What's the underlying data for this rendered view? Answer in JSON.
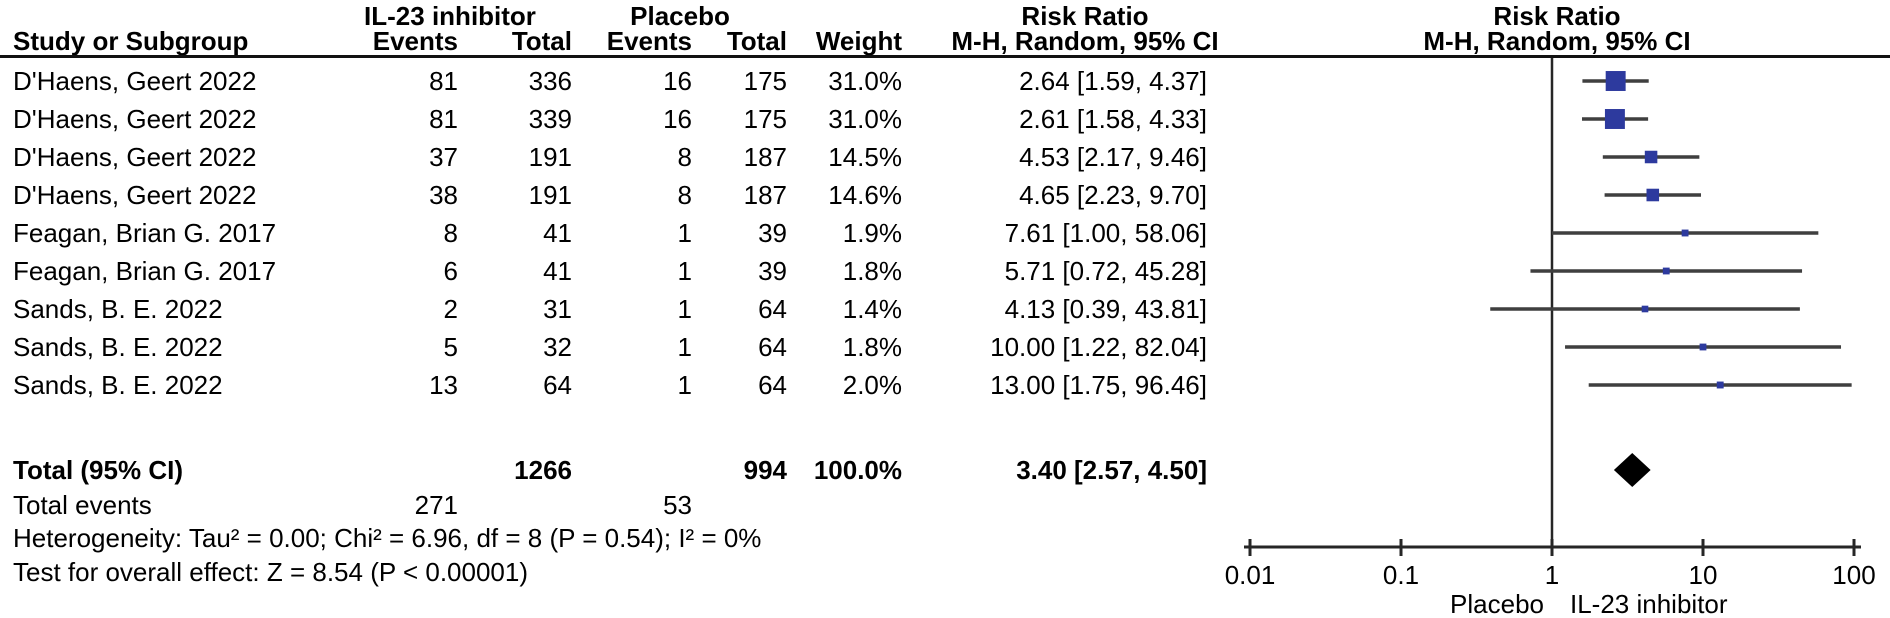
{
  "header": {
    "group1": "IL-23 inhibitor",
    "group2": "Placebo",
    "study_col": "Study or Subgroup",
    "events_col": "Events",
    "total_col": "Total",
    "weight_col": "Weight",
    "risk_ratio_text_col": {
      "line1": "Risk Ratio",
      "line2": "M-H, Random, 95% CI"
    },
    "risk_ratio_plot_col": {
      "line1": "Risk Ratio",
      "line2": "M-H, Random, 95% CI"
    }
  },
  "chart_data": {
    "type": "forest",
    "effect_measure": "Risk Ratio",
    "method": "M-H, Random, 95% CI",
    "x_scale": "log10",
    "x_range": [
      0.01,
      100
    ],
    "marker_color": "#2d3a9e",
    "ci_line_color": "#3f3f3f",
    "axis_color": "#262626",
    "diamond_color": "#000000",
    "axis_ticks": [
      {
        "value": 0.01,
        "label": "0.01"
      },
      {
        "value": 0.1,
        "label": "0.1"
      },
      {
        "value": 1,
        "label": "1"
      },
      {
        "value": 10,
        "label": "10"
      },
      {
        "value": 100,
        "label": "100"
      }
    ],
    "axis_left_label": "Placebo",
    "axis_right_label": "IL-23 inhibitor",
    "studies": [
      {
        "name": "D'Haens, Geert 2022",
        "events1": "81",
        "total1": "336",
        "events2": "16",
        "total2": "175",
        "weight": "31.0%",
        "weight_pct": 31.0,
        "rr": 2.64,
        "ci_low": 1.59,
        "ci_high": 4.37,
        "estimate_label": "2.64 [1.59, 4.37]"
      },
      {
        "name": "D'Haens, Geert 2022",
        "events1": "81",
        "total1": "339",
        "events2": "16",
        "total2": "175",
        "weight": "31.0%",
        "weight_pct": 31.0,
        "rr": 2.61,
        "ci_low": 1.58,
        "ci_high": 4.33,
        "estimate_label": "2.61 [1.58, 4.33]"
      },
      {
        "name": "D'Haens, Geert 2022",
        "events1": "37",
        "total1": "191",
        "events2": "8",
        "total2": "187",
        "weight": "14.5%",
        "weight_pct": 14.5,
        "rr": 4.53,
        "ci_low": 2.17,
        "ci_high": 9.46,
        "estimate_label": "4.53 [2.17, 9.46]"
      },
      {
        "name": "D'Haens, Geert 2022",
        "events1": "38",
        "total1": "191",
        "events2": "8",
        "total2": "187",
        "weight": "14.6%",
        "weight_pct": 14.6,
        "rr": 4.65,
        "ci_low": 2.23,
        "ci_high": 9.7,
        "estimate_label": "4.65 [2.23, 9.70]"
      },
      {
        "name": "Feagan, Brian G. 2017",
        "events1": "8",
        "total1": "41",
        "events2": "1",
        "total2": "39",
        "weight": "1.9%",
        "weight_pct": 1.9,
        "rr": 7.61,
        "ci_low": 1.0,
        "ci_high": 58.06,
        "estimate_label": "7.61 [1.00, 58.06]"
      },
      {
        "name": "Feagan, Brian G. 2017",
        "events1": "6",
        "total1": "41",
        "events2": "1",
        "total2": "39",
        "weight": "1.8%",
        "weight_pct": 1.8,
        "rr": 5.71,
        "ci_low": 0.72,
        "ci_high": 45.28,
        "estimate_label": "5.71 [0.72, 45.28]"
      },
      {
        "name": "Sands, B. E. 2022",
        "events1": "2",
        "total1": "31",
        "events2": "1",
        "total2": "64",
        "weight": "1.4%",
        "weight_pct": 1.4,
        "rr": 4.13,
        "ci_low": 0.39,
        "ci_high": 43.81,
        "estimate_label": "4.13 [0.39, 43.81]"
      },
      {
        "name": "Sands, B. E. 2022",
        "events1": "5",
        "total1": "32",
        "events2": "1",
        "total2": "64",
        "weight": "1.8%",
        "weight_pct": 1.8,
        "rr": 10.0,
        "ci_low": 1.22,
        "ci_high": 82.04,
        "estimate_label": "10.00 [1.22, 82.04]"
      },
      {
        "name": "Sands, B. E. 2022",
        "events1": "13",
        "total1": "64",
        "events2": "1",
        "total2": "64",
        "weight": "2.0%",
        "weight_pct": 2.0,
        "rr": 13.0,
        "ci_low": 1.75,
        "ci_high": 96.46,
        "estimate_label": "13.00 [1.75, 96.46]"
      }
    ],
    "total": {
      "label": "Total (95% CI)",
      "total1": "1266",
      "total2": "994",
      "weight": "100.0%",
      "rr": 3.4,
      "ci_low": 2.57,
      "ci_high": 4.5,
      "estimate_label": "3.40 [2.57, 4.50]"
    },
    "total_events": {
      "label": "Total events",
      "events1": "271",
      "events2": "53"
    },
    "heterogeneity": "Heterogeneity: Tau² = 0.00; Chi² = 6.96, df = 8 (P = 0.54); I² = 0%",
    "overall_effect": "Test for overall effect: Z = 8.54 (P < 0.00001)"
  }
}
